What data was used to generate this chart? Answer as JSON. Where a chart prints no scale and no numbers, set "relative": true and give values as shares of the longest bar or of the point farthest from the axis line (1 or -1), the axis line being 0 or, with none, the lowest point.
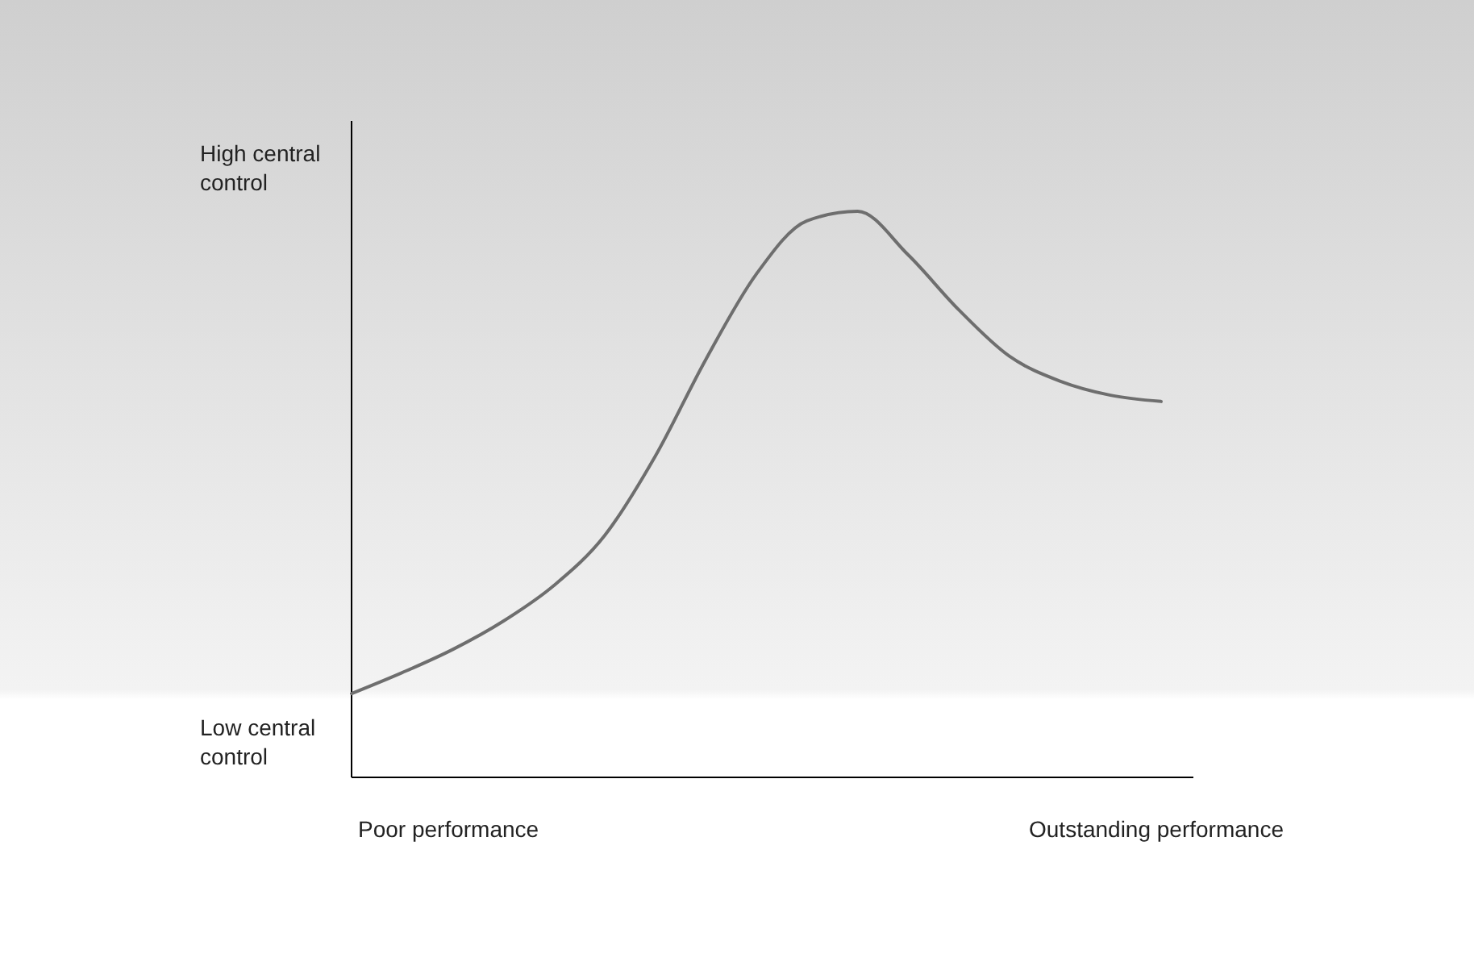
{
  "chart_data": {
    "type": "line",
    "relative": true,
    "categories": [
      null,
      null,
      null,
      null,
      null,
      null,
      null,
      null,
      null,
      null,
      null,
      null,
      null,
      null,
      null,
      null,
      null
    ],
    "series": [
      {
        "color": "#6e6e6e",
        "values": [
          0.148,
          0.185,
          0.226,
          0.276,
          0.339,
          0.427,
          0.567,
          0.738,
          0.889,
          0.983,
          1,
          0.923,
          0.826,
          0.744,
          0.7,
          0.675,
          0.664
        ]
      }
    ],
    "annotations": [
      "High central control",
      "Low central control",
      "Poor performance",
      "Outstanding performance"
    ]
  }
}
